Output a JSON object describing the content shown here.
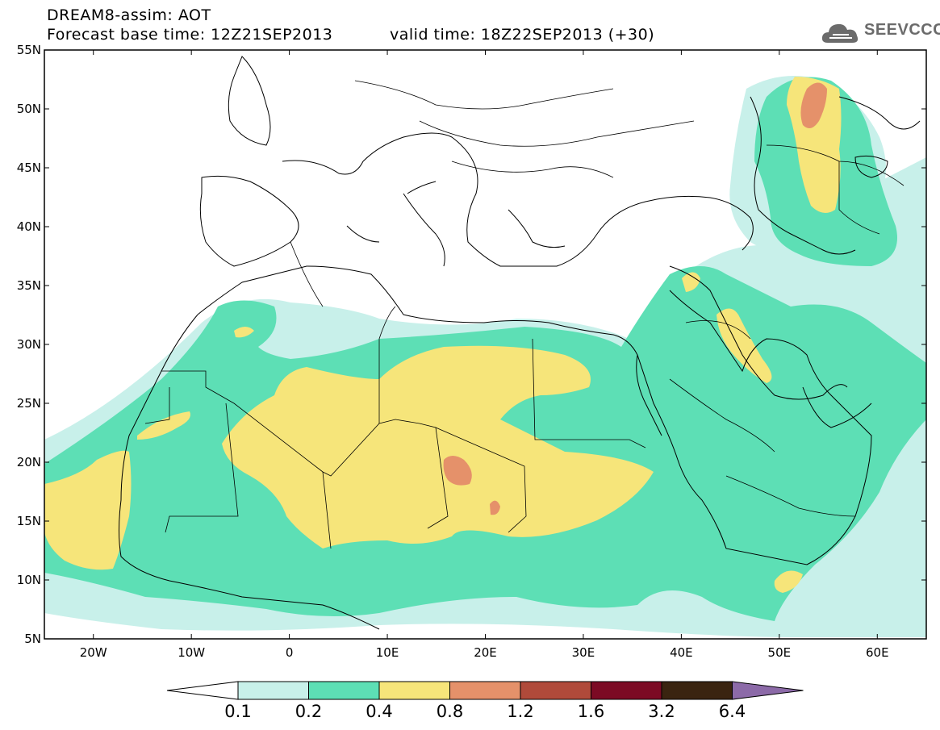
{
  "header": {
    "line1": "DREAM8-assim: AOT",
    "line2": "Forecast base time: 12Z21SEP2013",
    "valid": "valid time: 18Z22SEP2013 (+30)"
  },
  "logo": {
    "text": "SEEVCCC",
    "icon": "cloud-icon"
  },
  "map": {
    "projection": "lat-lon",
    "lon_range": [
      -25,
      65
    ],
    "lat_range": [
      5,
      55
    ],
    "lat_labels": [
      "55N",
      "50N",
      "45N",
      "40N",
      "35N",
      "30N",
      "25N",
      "20N",
      "15N",
      "10N",
      "5N"
    ],
    "lon_labels": [
      "20W",
      "10W",
      "0",
      "10E",
      "20E",
      "30E",
      "40E",
      "50E",
      "60E"
    ]
  },
  "legend": {
    "levels": [
      "0.1",
      "0.2",
      "0.4",
      "0.8",
      "1.2",
      "1.6",
      "3.2",
      "6.4"
    ],
    "colors": [
      "#ffffff",
      "#c8f0ea",
      "#5ddfb5",
      "#f6e57a",
      "#e5916a",
      "#b04a3a",
      "#7c0a24",
      "#3a2410",
      "#8c6aa8"
    ]
  }
}
